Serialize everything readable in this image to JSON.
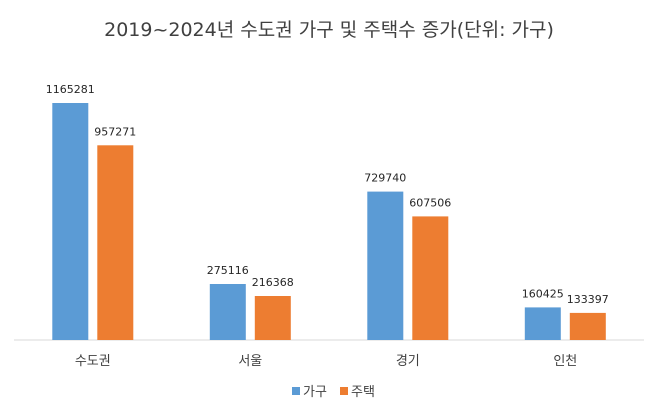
{
  "chart_data": {
    "type": "bar",
    "title": "2019~2024년 수도권 가구 및 주택수 증가(단위: 가구)",
    "categories": [
      "수도권",
      "서울",
      "경기",
      "인천"
    ],
    "series": [
      {
        "name": "가구",
        "values": [
          1165281,
          275116,
          729740,
          160425
        ],
        "color": "#5b9bd5"
      },
      {
        "name": "주택",
        "values": [
          957271,
          216368,
          607506,
          133397
        ],
        "color": "#ed7d31"
      }
    ],
    "ylim": [
      0,
      1200000
    ],
    "grid": false,
    "legend_position": "bottom",
    "data_labels": true
  }
}
